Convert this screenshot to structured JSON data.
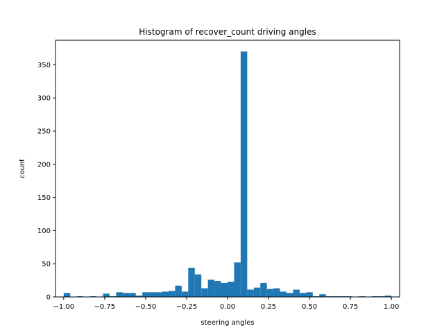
{
  "chart_data": {
    "type": "bar",
    "title": "Histogram of recover_count driving angles",
    "xlabel": "steering angles",
    "ylabel": "count",
    "xlim": [
      -1.05,
      1.05
    ],
    "ylim": [
      0,
      387
    ],
    "bin_width": 0.04,
    "grid": false,
    "legend": "none",
    "x_ticks": [
      -1.0,
      -0.75,
      -0.5,
      -0.25,
      0.0,
      0.25,
      0.5,
      0.75,
      1.0
    ],
    "x_tick_labels": [
      "−1.00",
      "−0.75",
      "−0.50",
      "−0.25",
      "0.00",
      "0.25",
      "0.50",
      "0.75",
      "1.00"
    ],
    "y_ticks": [
      0,
      50,
      100,
      150,
      200,
      250,
      300,
      350
    ],
    "y_tick_labels": [
      "0",
      "50",
      "100",
      "150",
      "200",
      "250",
      "300",
      "350"
    ],
    "bar_color": "#1f77b4",
    "bin_starts": [
      -1.0,
      -0.96,
      -0.92,
      -0.88,
      -0.84,
      -0.8,
      -0.76,
      -0.72,
      -0.68,
      -0.64,
      -0.6,
      -0.56,
      -0.52,
      -0.48,
      -0.44,
      -0.4,
      -0.36,
      -0.32,
      -0.28,
      -0.24,
      -0.2,
      -0.16,
      -0.12,
      -0.08,
      -0.04,
      0.0,
      0.04,
      0.08,
      0.12,
      0.16,
      0.2,
      0.24,
      0.28,
      0.32,
      0.36,
      0.4,
      0.44,
      0.48,
      0.52,
      0.56,
      0.6,
      0.64,
      0.68,
      0.72,
      0.76,
      0.8,
      0.84,
      0.88,
      0.92,
      0.96
    ],
    "values": [
      6,
      0,
      1,
      0,
      1,
      0,
      5,
      1,
      7,
      6,
      6,
      2,
      7,
      7,
      7,
      8,
      9,
      17,
      8,
      44,
      34,
      13,
      26,
      24,
      21,
      23,
      52,
      370,
      11,
      14,
      21,
      12,
      13,
      8,
      6,
      11,
      6,
      7,
      1,
      4,
      1,
      1,
      1,
      1,
      0,
      1,
      0,
      1,
      1,
      2
    ]
  }
}
